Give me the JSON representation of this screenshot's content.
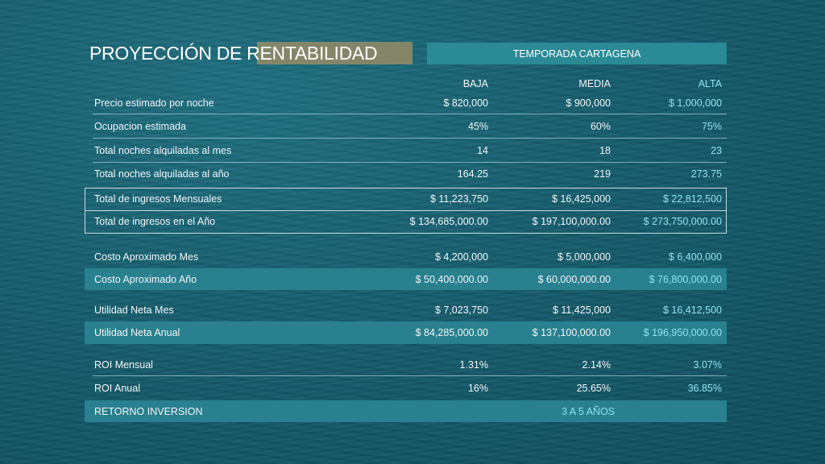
{
  "title": "PROYECCIÓN DE RENTABILIDAD",
  "season": "TEMPORADA CARTAGENA",
  "columns": [
    "BAJA",
    "MEDIA",
    "ALTA"
  ],
  "rows": [
    {
      "label": "Precio estimado por noche",
      "values": [
        "$  820,000",
        "$  900,000",
        "$  1,000,000"
      ]
    },
    {
      "label": "Ocupacion estimada",
      "values": [
        "45%",
        "60%",
        "75%"
      ]
    },
    {
      "label": "Total noches alquiladas al mes",
      "values": [
        "14",
        "18",
        "23"
      ]
    },
    {
      "label": "Total noches alquiladas al año",
      "values": [
        "164.25",
        "219",
        "273.75"
      ]
    },
    {
      "label": "Total de ingresos Mensuales",
      "values": [
        "$  11,223,750",
        "$  16,425,000",
        "$  22,812,500"
      ]
    },
    {
      "label": "Total de ingresos en el Año",
      "values": [
        "$  134,685,000.00",
        "$  197,100,000.00",
        "$  273,750,000.00"
      ]
    },
    {
      "label": "Costo Aproximado Mes",
      "values": [
        "$  4,200,000",
        "$  5,000,000",
        "$  6,400,000"
      ]
    },
    {
      "label": "Costo Aproximado Año",
      "values": [
        "$  50,400,000.00",
        "$  60,000,000.00",
        "$  76,800,000.00"
      ]
    },
    {
      "label": "Utilidad Neta Mes",
      "values": [
        "$  7,023,750",
        "$  11,425,000",
        "$  16,412,500"
      ]
    },
    {
      "label": "Utilidad Neta Anual",
      "values": [
        "$  84,285,000.00",
        "$  137,100,000.00",
        "$  196,950,000.00"
      ]
    },
    {
      "label": "ROI Mensual",
      "values": [
        "1.31%",
        "2.14%",
        "3.07%"
      ]
    },
    {
      "label": "ROI Anual",
      "values": [
        "16%",
        "25.65%",
        "36.85%"
      ]
    }
  ],
  "return": {
    "label": "RETORNO INVERSION",
    "value": "3 A 5 AÑOS"
  }
}
